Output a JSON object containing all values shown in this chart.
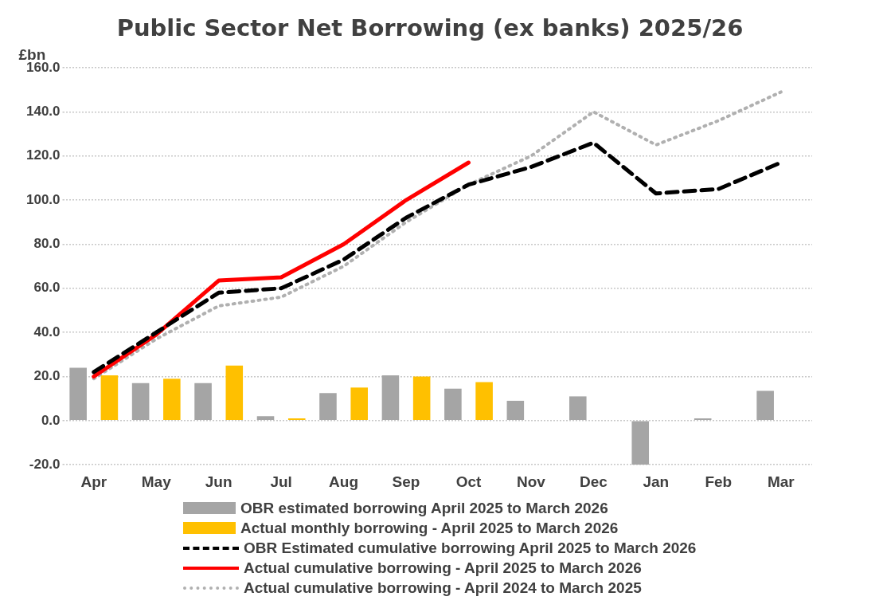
{
  "chart_data": {
    "type": "bar",
    "title": "Public Sector Net Borrowing (ex banks) 2025/26",
    "ylabel": "£bn",
    "categories": [
      "Apr",
      "May",
      "Jun",
      "Jul",
      "Aug",
      "Sep",
      "Oct",
      "Nov",
      "Dec",
      "Jan",
      "Feb",
      "Mar"
    ],
    "series": [
      {
        "name": "OBR estimated borrowing April 2025 to March 2026",
        "color": "#a5a5a5",
        "values": [
          24,
          17,
          17,
          2,
          12.5,
          20.5,
          14.5,
          9,
          11,
          -20,
          1,
          13.5
        ]
      },
      {
        "name": "Actual monthly borrowing - April 2025 to March 2026",
        "color": "#ffc000",
        "values": [
          20.5,
          19,
          25,
          1,
          15,
          20,
          17.5,
          null,
          null,
          null,
          null,
          null
        ]
      },
      {
        "name": "OBR Estimated cumulative borrowing April 2025 to March 2026",
        "type": "line",
        "line_style": "dashed",
        "color": "#000000",
        "values": [
          22,
          40,
          58,
          60,
          73,
          92,
          107,
          115,
          126,
          103,
          105,
          117
        ]
      },
      {
        "name": "Actual cumulative borrowing - April 2025 to March 2026",
        "type": "line",
        "line_style": "solid",
        "color": "#ff0000",
        "values": [
          20,
          39,
          63.5,
          65,
          80,
          100,
          117,
          null,
          null,
          null,
          null,
          null
        ]
      },
      {
        "name": "Actual cumulative borrowing - April 2024 to March 2025",
        "type": "line",
        "line_style": "dotted",
        "color": "#b0b0b0",
        "values": [
          19,
          37,
          52,
          56,
          70,
          90,
          107,
          120,
          140,
          125,
          136,
          149
        ]
      }
    ],
    "ylim": [
      -20,
      160
    ],
    "yticks": [
      {
        "value": -20,
        "label": "-20.0"
      },
      {
        "value": 0,
        "label": "0.0"
      },
      {
        "value": 20,
        "label": "20.0"
      },
      {
        "value": 40,
        "label": "40.0"
      },
      {
        "value": 60,
        "label": "60.0"
      },
      {
        "value": 80,
        "label": "80.0"
      },
      {
        "value": 100,
        "label": "100.0"
      },
      {
        "value": 120,
        "label": "120.0"
      },
      {
        "value": 140,
        "label": "140.0"
      },
      {
        "value": 160,
        "label": "160.0"
      }
    ],
    "grid": "y",
    "legend": "bottom",
    "marker": "none"
  }
}
